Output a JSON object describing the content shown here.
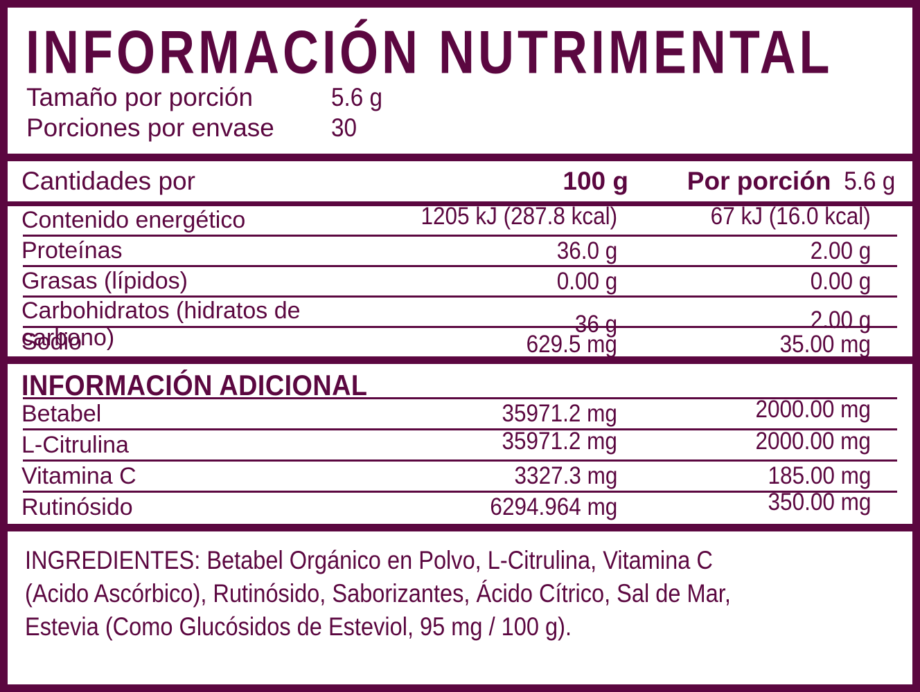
{
  "label": {
    "accent_color": "#5b0740",
    "title": "INFORMACIÓN NUTRIMENTAL",
    "serving": {
      "size_label": "Tamaño por porción",
      "size_value": "5.6 g",
      "count_label": "Porciones por envase",
      "count_value": "30"
    },
    "nutrition_table": {
      "header": {
        "col1": "Cantidades por",
        "col2": "100 g",
        "col3_bold": "Por porción",
        "col3_value": "5.6 g"
      },
      "rows": [
        {
          "name": "Contenido energético",
          "per100": "1205 kJ (287.8 kcal)",
          "perServing": "67 kJ (16.0 kcal)"
        },
        {
          "name": "Proteínas",
          "per100": "36.0 g",
          "perServing": "2.00 g"
        },
        {
          "name": "Grasas (lípidos)",
          "per100": "0.00 g",
          "perServing": "0.00 g"
        },
        {
          "name": "Carbohidratos (hidratos de carbono)",
          "per100": "36 g",
          "perServing": "2.00 g"
        },
        {
          "name": "Sodio",
          "per100": "629.5 mg",
          "perServing": "35.00 mg"
        }
      ]
    },
    "additional": {
      "title": "INFORMACIÓN ADICIONAL",
      "rows": [
        {
          "name": "Betabel",
          "per100": "35971.2 mg",
          "perServing": "2000.00 mg"
        },
        {
          "name": "L-Citrulina",
          "per100": "35971.2 mg",
          "perServing": "2000.00 mg"
        },
        {
          "name": "Vitamina C",
          "per100": "3327.3 mg",
          "perServing": "185.00 mg"
        },
        {
          "name": "Rutinósido",
          "per100": "6294.964 mg",
          "perServing": "350.00 mg"
        }
      ]
    },
    "ingredients": {
      "lines": [
        "INGREDIENTES: Betabel Orgánico en Polvo, L-Citrulina, Vitamina C",
        "(Acido Ascórbico), Rutinósido, Saborizantes, Ácido Cítrico, Sal de Mar,",
        "Estevia (Como Glucósidos de Esteviol, 95 mg / 100 g)."
      ]
    }
  }
}
